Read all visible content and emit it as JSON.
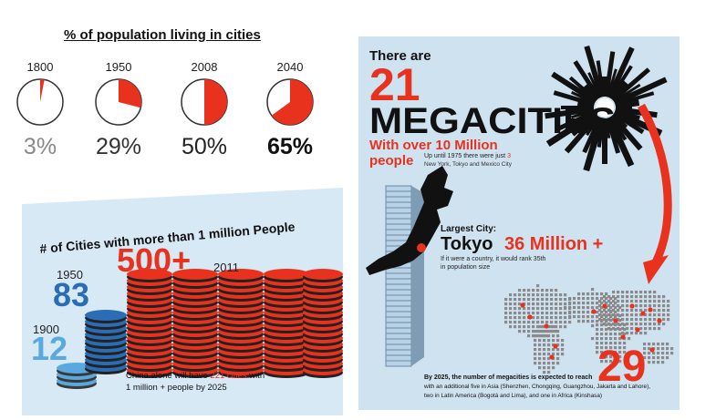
{
  "title": "% of population living in cities",
  "pies": [
    {
      "year": "1800",
      "label": "3%",
      "value": 3
    },
    {
      "year": "1950",
      "label": "29%",
      "value": 29
    },
    {
      "year": "2008",
      "label": "50%",
      "value": 50
    },
    {
      "year": "2040",
      "label": "65%",
      "value": 65
    }
  ],
  "cities": {
    "heading": "# of Cities with more than 1 million People",
    "y1900": "1900",
    "v1900": "12",
    "y1950": "1950",
    "v1950": "83",
    "v2011": "500+",
    "y2011": "2011",
    "china_pre": "China alone will have ",
    "china_num": "221 cities",
    "china_post": " with",
    "china_line2": "1 million + people by 2025"
  },
  "mega": {
    "there_are": "There are",
    "count": "21",
    "title": "MEGACITIES",
    "sub1": "With over 10 Million",
    "sub2": "people",
    "note1_pre": "Up until 1975 there were just ",
    "note1_num": "3",
    "note2": "New York, Tokyo and Mexico City",
    "largest_label": "Largest City:",
    "largest_city": "Tokyo",
    "largest_pop": "36 Million +",
    "rank1": "If it were a country, it would rank 35th",
    "rank2": "in population size",
    "future_num": "29",
    "f1": "By 2025, the number of megacities is expected to reach",
    "f2": "with an additional five in Asia (Shenzhen, Chongqing, Guangzhou, Jakarta and Lahore),",
    "f3": "two in Latin America (Bogotá and Lima), and one in Africa (Kinshasa)"
  },
  "colors": {
    "red": "#e8321e",
    "blue": "#2a6db5",
    "lightblue": "#5aa9de",
    "dark": "#111111"
  }
}
